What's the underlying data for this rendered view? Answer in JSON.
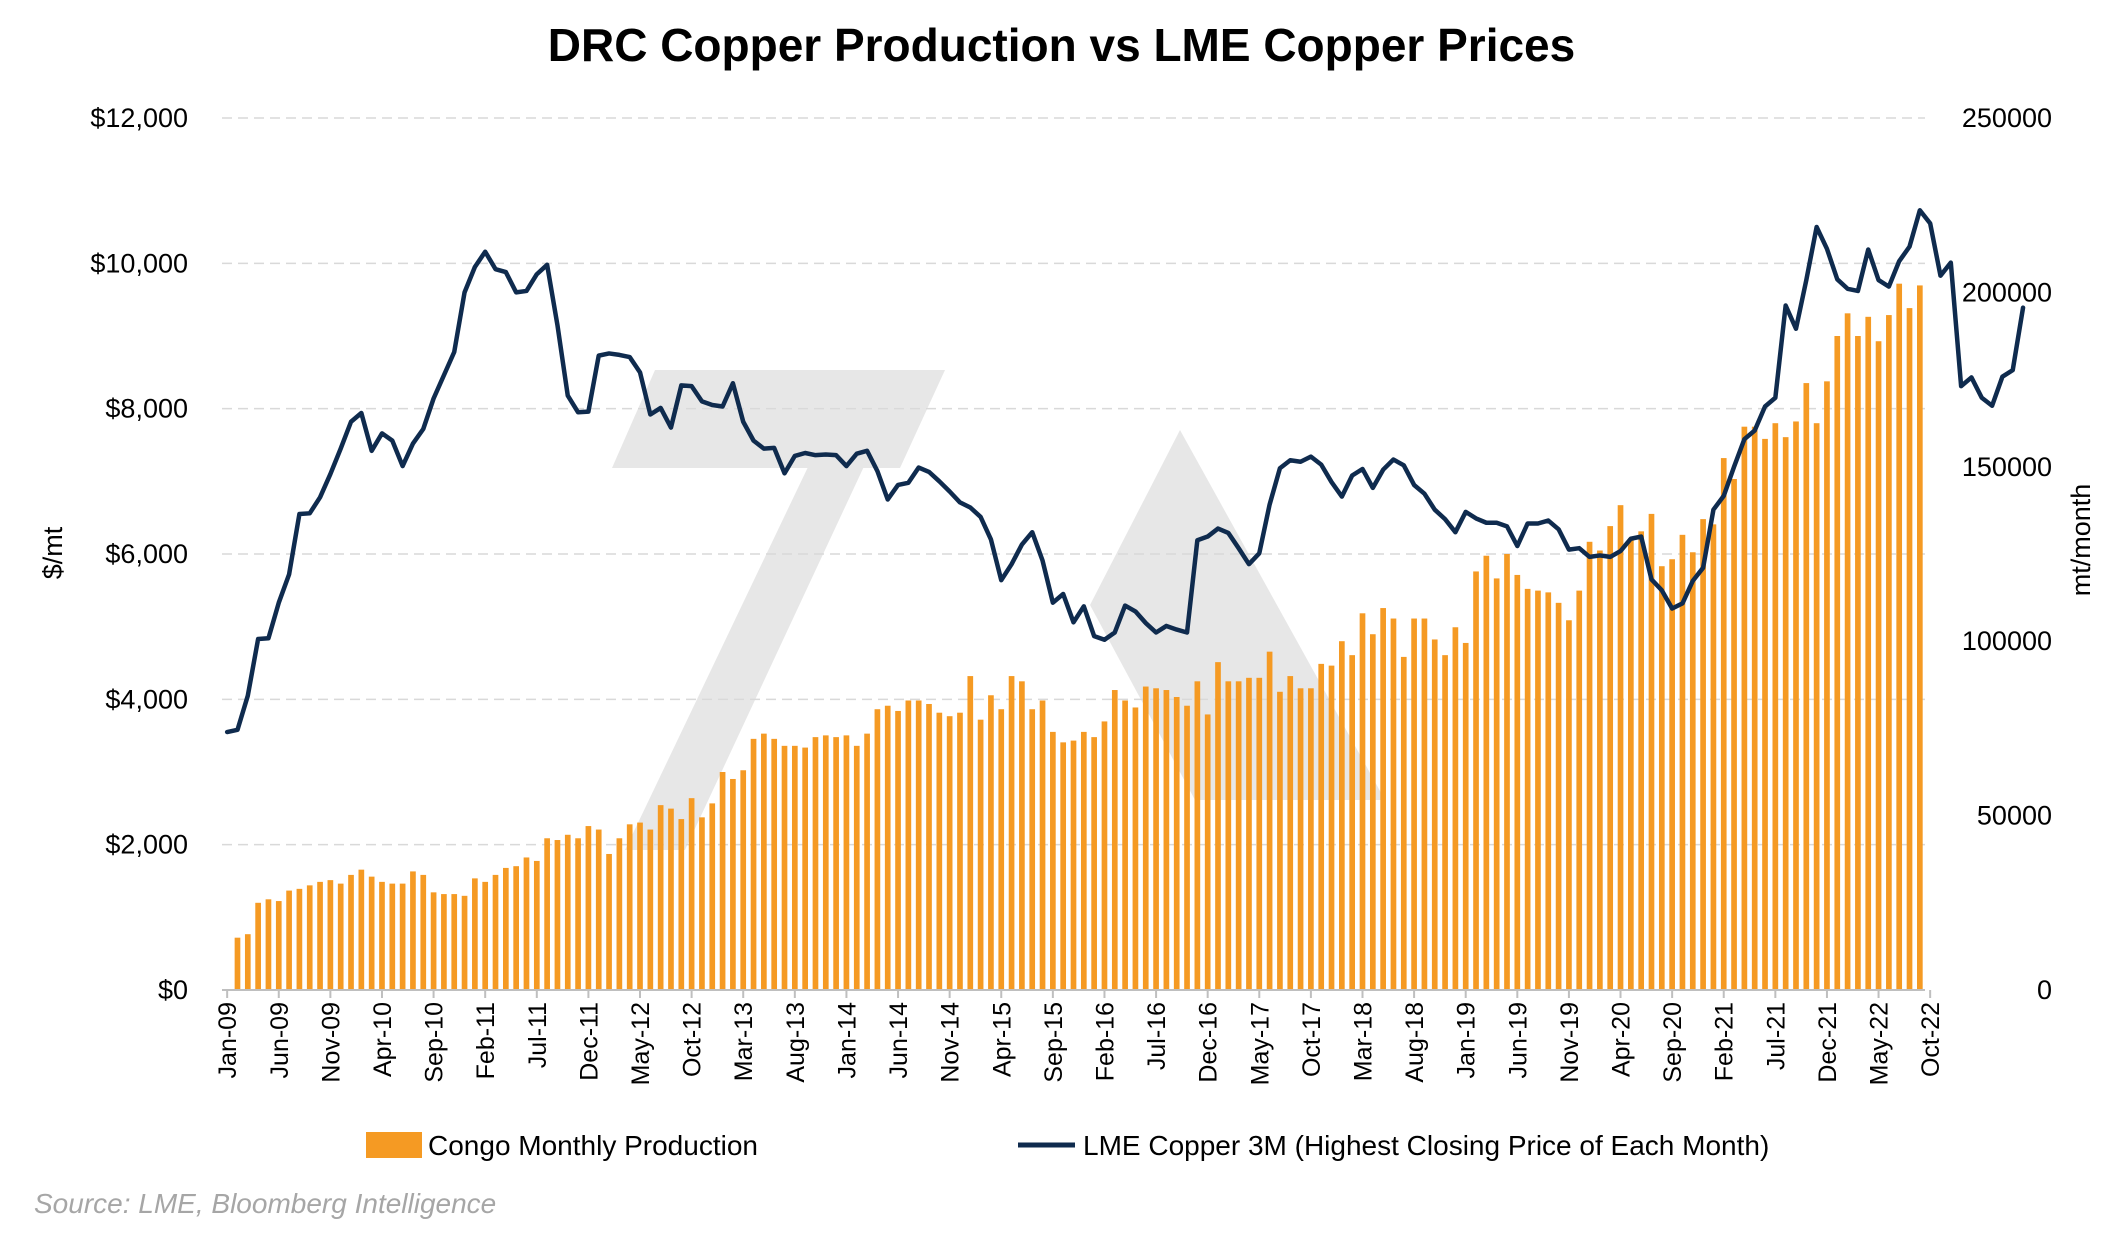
{
  "chart_data": {
    "type": "bar+line",
    "title": "DRC Copper Production vs LME Copper Prices",
    "ylabel_left": "$/mt",
    "ylabel_right": "mt/month",
    "ylim_left": [
      0,
      12000
    ],
    "ylim_right": [
      0,
      250000
    ],
    "yticks_left": [
      "$0",
      "$2,000",
      "$4,000",
      "$6,000",
      "$8,000",
      "$10,000",
      "$12,000"
    ],
    "yticks_left_values": [
      0,
      2000,
      4000,
      6000,
      8000,
      10000,
      12000
    ],
    "yticks_right": [
      "0",
      "50000",
      "100000",
      "150000",
      "200000",
      "250000"
    ],
    "yticks_right_values": [
      0,
      50000,
      100000,
      150000,
      200000,
      250000
    ],
    "xticks": [
      "Jan-09",
      "Jun-09",
      "Nov-09",
      "Apr-10",
      "Sep-10",
      "Feb-11",
      "Jul-11",
      "Dec-11",
      "May-12",
      "Oct-12",
      "Mar-13",
      "Aug-13",
      "Jan-14",
      "Jun-14",
      "Nov-14",
      "Apr-15",
      "Sep-15",
      "Feb-16",
      "Jul-16",
      "Dec-16",
      "May-17",
      "Oct-17",
      "Mar-18",
      "Aug-18",
      "Jan-19",
      "Jun-19",
      "Nov-19",
      "Apr-20",
      "Sep-20",
      "Feb-21",
      "Jul-21",
      "Dec-21",
      "May-22",
      "Oct-22"
    ],
    "x_start": "Jan-09",
    "x_end": "Mar-23",
    "grid": "horizontal dashed",
    "legend_position": "bottom",
    "series": [
      {
        "name": "Congo Monthly Production",
        "type": "bar",
        "axis": "right",
        "color": "#f59a23",
        "values": [
          0,
          15000,
          16000,
          25000,
          26000,
          25500,
          28500,
          29000,
          30000,
          31000,
          31500,
          30500,
          33000,
          34500,
          32500,
          31000,
          30500,
          30500,
          34000,
          33000,
          28000,
          27500,
          27500,
          27000,
          32000,
          31000,
          33000,
          35000,
          35500,
          38000,
          37000,
          43500,
          43000,
          44500,
          43500,
          47000,
          46000,
          39000,
          43500,
          47500,
          48000,
          46000,
          53000,
          52000,
          49000,
          55000,
          49500,
          53500,
          62500,
          60500,
          63000,
          72000,
          73500,
          72000,
          70000,
          70000,
          69500,
          72500,
          73000,
          72500,
          73000,
          70000,
          73500,
          80500,
          81500,
          80000,
          83000,
          83000,
          82000,
          79500,
          78500,
          79500,
          90000,
          77500,
          84500,
          80500,
          90000,
          88500,
          80500,
          83000,
          74000,
          71000,
          71500,
          74000,
          72500,
          77000,
          86000,
          83000,
          81000,
          87000,
          86500,
          86000,
          84000,
          81500,
          88500,
          79000,
          94000,
          88500,
          88500,
          89500,
          89500,
          97000,
          85500,
          90000,
          86500,
          86500,
          93500,
          93000,
          100000,
          96000,
          108000,
          102000,
          109500,
          106500,
          95500,
          106500,
          106500,
          100500,
          96000,
          104000,
          99500,
          120000,
          124500,
          118000,
          125000,
          119000,
          115000,
          114500,
          114000,
          111000,
          106000,
          114500,
          128500,
          126000,
          133000,
          139000,
          129500,
          131500,
          136500,
          121500,
          123500,
          130500,
          125500,
          135000,
          133500,
          152500,
          146500,
          161500,
          161500,
          158000,
          162500,
          158500,
          163000,
          174000,
          162500,
          174500,
          187500,
          194000,
          187500,
          193000,
          186000,
          193500,
          202500,
          195500,
          202000
        ]
      },
      {
        "name": "LME Copper 3M (Highest Closing Price of Each Month)",
        "type": "line",
        "axis": "left",
        "color": "#0f2b4e",
        "values": [
          3550,
          3580,
          4050,
          4830,
          4840,
          5330,
          5720,
          6550,
          6560,
          6780,
          7100,
          7450,
          7820,
          7940,
          7420,
          7660,
          7560,
          7210,
          7520,
          7720,
          8140,
          8460,
          8780,
          9600,
          9950,
          10160,
          9920,
          9880,
          9600,
          9620,
          9850,
          9980,
          9150,
          8180,
          7950,
          7960,
          8730,
          8760,
          8740,
          8710,
          8500,
          7920,
          8010,
          7740,
          8320,
          8310,
          8100,
          8050,
          8030,
          8350,
          7820,
          7560,
          7450,
          7460,
          7110,
          7350,
          7390,
          7360,
          7370,
          7360,
          7210,
          7380,
          7420,
          7140,
          6750,
          6950,
          6980,
          7190,
          7130,
          7000,
          6860,
          6710,
          6640,
          6510,
          6200,
          5640,
          5860,
          6130,
          6300,
          5910,
          5330,
          5450,
          5060,
          5280,
          4870,
          4820,
          4920,
          5290,
          5210,
          5050,
          4920,
          5010,
          4960,
          4920,
          6190,
          6240,
          6350,
          6290,
          6080,
          5860,
          6010,
          6680,
          7180,
          7290,
          7270,
          7340,
          7230,
          6990,
          6790,
          7080,
          7170,
          6910,
          7160,
          7300,
          7220,
          6950,
          6830,
          6610,
          6480,
          6300,
          6580,
          6490,
          6430,
          6430,
          6380,
          6110,
          6420,
          6420,
          6460,
          6340,
          6060,
          6080,
          5960,
          5980,
          5960,
          6040,
          6210,
          6240,
          5650,
          5500,
          5250,
          5320,
          5630,
          5810,
          6610,
          6800,
          7200,
          7580,
          7700,
          8030,
          8150,
          9420,
          9100,
          9770,
          10500,
          10200,
          9780,
          9650,
          9620,
          10190,
          9770,
          9680,
          10030,
          10230,
          10730,
          10550,
          9830,
          10010,
          8310,
          8430,
          8150,
          8040,
          8440,
          8530,
          9390
        ]
      }
    ]
  },
  "legend": {
    "bar_label": "Congo Monthly Production",
    "line_label": "LME Copper 3M (Highest Closing Price of Each Month)"
  },
  "source_note": "Source: LME, Bloomberg Intelligence",
  "colors": {
    "bar": "#f59a23",
    "line": "#0f2b4e",
    "grid": "#d9d9d9",
    "watermark": "#e7e7e7"
  }
}
